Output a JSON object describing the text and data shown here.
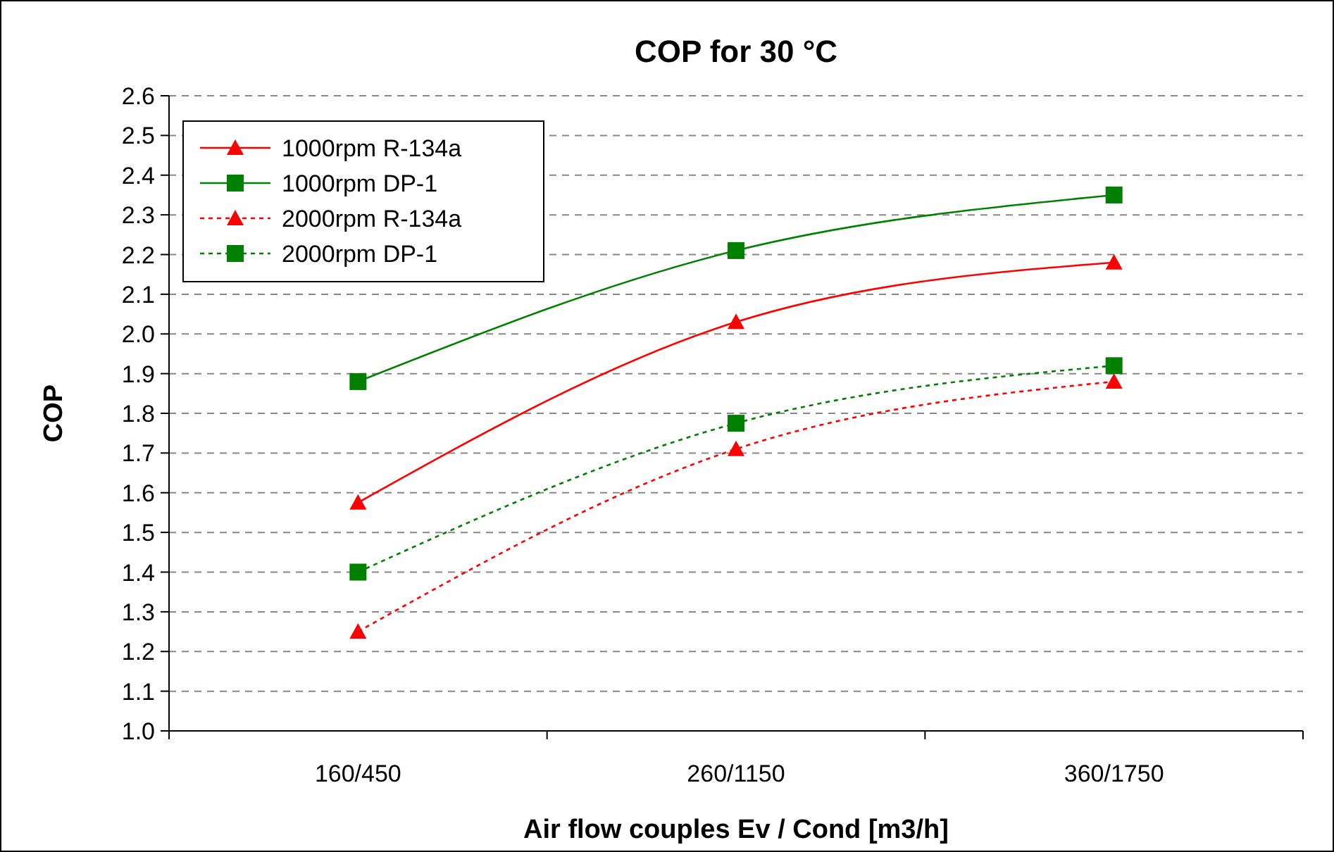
{
  "chart_data": {
    "type": "line",
    "title": "COP for 30 °C",
    "xlabel": "Air flow couples Ev / Cond [m3/h]",
    "ylabel": "COP",
    "categories": [
      "160/450",
      "260/1150",
      "360/1750"
    ],
    "ylim": [
      1.0,
      2.6
    ],
    "yticks": [
      {
        "value": 1.0,
        "label": "1.0"
      },
      1.1,
      1.2,
      1.3,
      1.4,
      1.5,
      1.6,
      1.7,
      1.8,
      1.9,
      {
        "value": 2.0,
        "label": "2.0"
      },
      2.1,
      2.2,
      2.3,
      2.4,
      2.5,
      2.6
    ],
    "grid": "y",
    "legend": "top left",
    "series": [
      {
        "name": "1000rpm R-134a",
        "color": "#ff0000",
        "marker": "triangle",
        "line_style": "solid",
        "values": [
          1.575,
          2.03,
          2.18
        ]
      },
      {
        "name": "1000rpm DP-1",
        "color": "#008000",
        "marker": "square",
        "line_style": "solid",
        "values": [
          1.88,
          2.21,
          2.35
        ]
      },
      {
        "name": "2000rpm R-134a",
        "color": "#ff0000",
        "marker": "triangle",
        "line_style": "dotted",
        "values": [
          1.25,
          1.71,
          1.88
        ]
      },
      {
        "name": "2000rpm DP-1",
        "color": "#008000",
        "marker": "square",
        "line_style": "dotted",
        "values": [
          1.4,
          1.775,
          1.92
        ]
      }
    ]
  }
}
